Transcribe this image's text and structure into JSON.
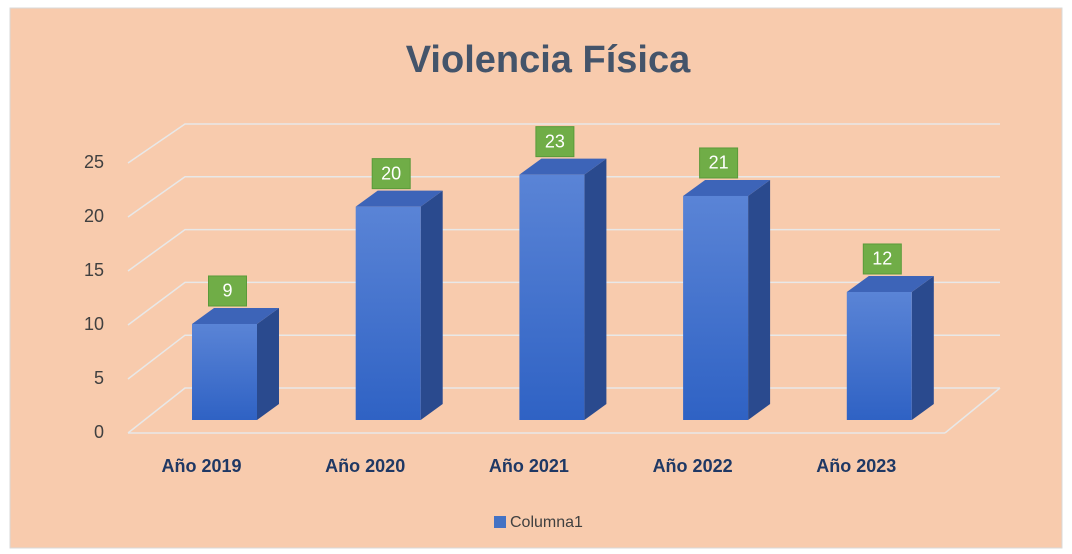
{
  "chart_data": {
    "type": "bar3d",
    "title": "Violencia Física",
    "categories": [
      "Año 2019",
      "Año 2020",
      "Año 2021",
      "Año 2022",
      "Año 2023"
    ],
    "series": [
      {
        "name": "Columna1",
        "color": "#4472c4",
        "values": [
          9,
          20,
          23,
          21,
          12
        ]
      }
    ],
    "ylim": [
      0,
      25
    ],
    "yticks": [
      0,
      5,
      10,
      15,
      20,
      25
    ],
    "grid": true,
    "legend": "bottom",
    "label_color": "#70ad47",
    "background": "#f8cbad"
  }
}
